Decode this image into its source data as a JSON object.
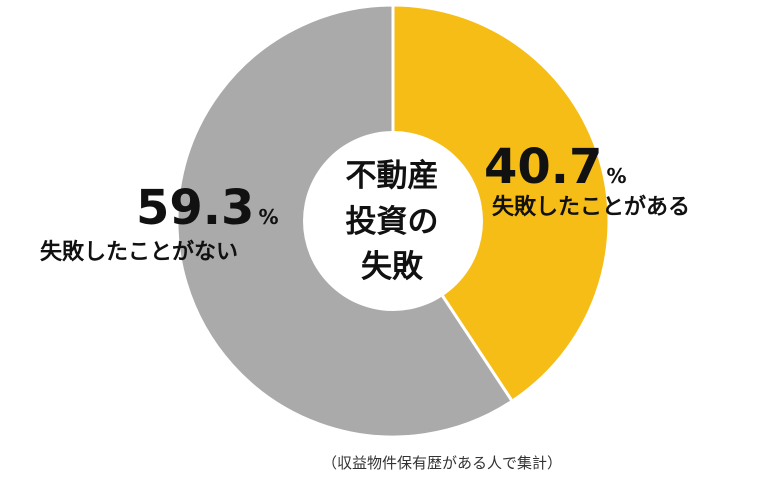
{
  "chart_data": {
    "type": "pie",
    "variant": "donut",
    "center_label_lines": [
      "不動産",
      "投資の",
      "失敗"
    ],
    "slices": [
      {
        "label": "失敗したことがある",
        "value": 40.7,
        "value_text": "40.7",
        "unit": "%",
        "color": "#f5bd15"
      },
      {
        "label": "失敗したことがない",
        "value": 59.3,
        "value_text": "59.3",
        "unit": "%",
        "color": "#aaaaaa"
      }
    ]
  },
  "footnote": "（収益物件保有歴がある人で集計）"
}
